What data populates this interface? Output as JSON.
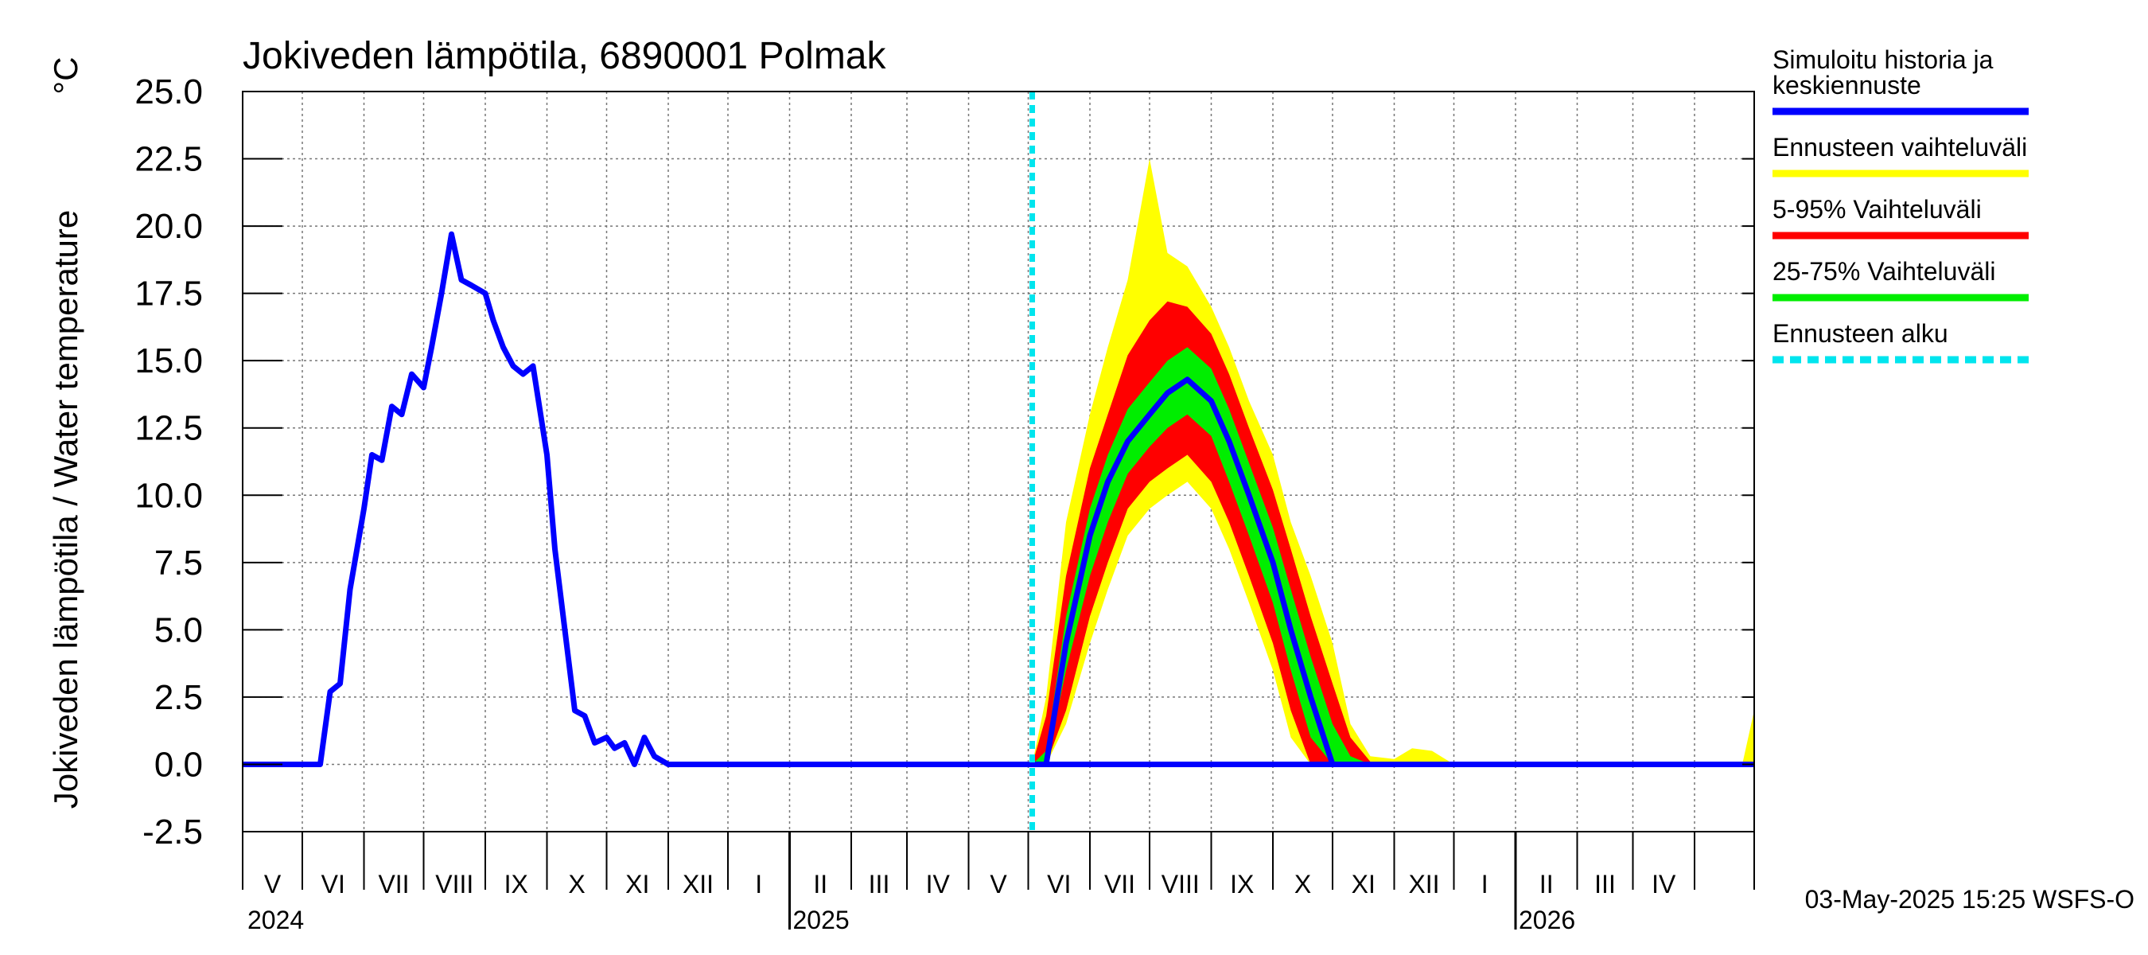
{
  "chart_data": {
    "type": "area",
    "title": "Jokiveden lämpötila, 6890001 Polmak",
    "ylabel": "Jokiveden lämpötila / Water temperature",
    "yunit": "°C",
    "ylim": [
      -2.5,
      25.0
    ],
    "yticks": [
      "25.0",
      "22.5",
      "20.0",
      "17.5",
      "15.0",
      "12.5",
      "10.0",
      "7.5",
      "5.0",
      "2.5",
      "0.0",
      "-2.5"
    ],
    "xlim": [
      "2024-04-01",
      "2026-05-01"
    ],
    "grid": true,
    "legend_position": "right",
    "month_labels": [
      "V",
      "VI",
      "VII",
      "VIII",
      "IX",
      "X",
      "XI",
      "XII",
      "I",
      "II",
      "III",
      "IV",
      "V",
      "VI",
      "VII",
      "VIII",
      "IX",
      "X",
      "XI",
      "XII",
      "I",
      "II",
      "III",
      "IV"
    ],
    "year_labels": [
      "2024",
      "2025",
      "2026"
    ],
    "forecast_start": "2025-05-03",
    "footer": "03-May-2025 15:25 WSFS-O",
    "legend": [
      {
        "label": "Simuloitu historia ja keskiennuste",
        "color": "#0000ff",
        "style": "solid"
      },
      {
        "label": "Ennusteen vaihteluväli",
        "color": "#ffff00",
        "style": "solid"
      },
      {
        "label": "5-95% Vaihteluväli",
        "color": "#ff0000",
        "style": "solid"
      },
      {
        "label": "25-75% Vaihteluväli",
        "color": "#00ee00",
        "style": "solid"
      },
      {
        "label": "Ennusteen alku",
        "color": "#00e5ee",
        "style": "dashed"
      }
    ],
    "history": {
      "name": "Simuloitu historia ja keskiennuste",
      "x": [
        "2024-04-01",
        "2024-05-10",
        "2024-05-15",
        "2024-05-20",
        "2024-05-25",
        "2024-06-01",
        "2024-06-05",
        "2024-06-10",
        "2024-06-15",
        "2024-06-20",
        "2024-06-25",
        "2024-07-01",
        "2024-07-05",
        "2024-07-10",
        "2024-07-15",
        "2024-07-20",
        "2024-07-25",
        "2024-08-01",
        "2024-08-05",
        "2024-08-10",
        "2024-08-15",
        "2024-08-20",
        "2024-08-25",
        "2024-09-01",
        "2024-09-05",
        "2024-09-10",
        "2024-09-15",
        "2024-09-20",
        "2024-09-25",
        "2024-10-01",
        "2024-10-05",
        "2024-10-10",
        "2024-10-15",
        "2024-10-20",
        "2024-10-25",
        "2024-11-01",
        "2024-11-05",
        "2024-11-10",
        "2024-11-15",
        "2024-11-20",
        "2024-11-25",
        "2024-12-01",
        "2026-05-01"
      ],
      "values": [
        0.0,
        0.0,
        2.7,
        3.0,
        6.5,
        9.5,
        11.5,
        11.3,
        13.3,
        13.0,
        14.5,
        14.0,
        15.5,
        17.5,
        19.7,
        18.0,
        17.8,
        17.5,
        16.5,
        15.5,
        14.8,
        14.5,
        14.8,
        11.5,
        8.0,
        5.0,
        2.0,
        1.8,
        0.8,
        1.0,
        0.6,
        0.8,
        0.0,
        1.0,
        0.3,
        0.0,
        0.0,
        0.0,
        0.0,
        0.0,
        0.0,
        0.0,
        0.0
      ]
    },
    "forecast": {
      "x": [
        "2025-05-03",
        "2025-05-10",
        "2025-05-20",
        "2025-06-01",
        "2025-06-10",
        "2025-06-20",
        "2025-07-01",
        "2025-07-10",
        "2025-07-20",
        "2025-08-01",
        "2025-08-10",
        "2025-08-20",
        "2025-09-01",
        "2025-09-10",
        "2025-09-20",
        "2025-10-01",
        "2025-10-10",
        "2025-10-20",
        "2025-11-01",
        "2025-11-10",
        "2025-11-20",
        "2025-12-01",
        "2026-01-01",
        "2026-04-25",
        "2026-05-01"
      ],
      "median": [
        0.0,
        0.0,
        4.5,
        8.5,
        10.5,
        12.0,
        13.0,
        13.8,
        14.3,
        13.5,
        12.0,
        10.0,
        7.5,
        5.0,
        2.5,
        0.0,
        0.0,
        0.0,
        0.0,
        0.0,
        0.0,
        0.0,
        0.0,
        0.0,
        0.0
      ],
      "p25": [
        0.0,
        0.0,
        3.5,
        7.0,
        9.0,
        10.8,
        11.8,
        12.5,
        13.0,
        12.2,
        10.5,
        8.5,
        6.0,
        3.5,
        1.0,
        0.0,
        0.0,
        0.0,
        0.0,
        0.0,
        0.0,
        0.0,
        0.0,
        0.0,
        0.0
      ],
      "p75": [
        0.0,
        0.5,
        5.5,
        9.5,
        11.5,
        13.2,
        14.2,
        15.0,
        15.5,
        14.7,
        13.2,
        11.2,
        8.8,
        6.5,
        4.0,
        1.5,
        0.3,
        0.0,
        0.0,
        0.0,
        0.0,
        0.0,
        0.0,
        0.0,
        0.0
      ],
      "p05": [
        0.0,
        0.0,
        2.0,
        5.5,
        7.5,
        9.5,
        10.5,
        11.0,
        11.5,
        10.5,
        9.0,
        7.0,
        4.5,
        2.0,
        0.0,
        0.0,
        0.0,
        0.0,
        0.0,
        0.0,
        0.0,
        0.0,
        0.0,
        0.0,
        0.0
      ],
      "p95": [
        0.0,
        1.8,
        7.0,
        11.0,
        13.0,
        15.2,
        16.5,
        17.2,
        17.0,
        16.0,
        14.5,
        12.5,
        10.2,
        8.0,
        5.5,
        3.0,
        1.0,
        0.1,
        0.0,
        0.0,
        0.0,
        0.0,
        0.0,
        0.0,
        0.0
      ],
      "min": [
        0.0,
        0.0,
        1.5,
        4.5,
        6.5,
        8.5,
        9.5,
        10.0,
        10.5,
        9.5,
        8.0,
        6.0,
        3.5,
        1.0,
        0.0,
        0.0,
        0.0,
        0.0,
        0.0,
        0.0,
        0.0,
        0.0,
        0.0,
        0.0,
        0.0
      ],
      "max": [
        0.0,
        2.5,
        9.0,
        13.0,
        15.5,
        18.0,
        22.5,
        19.0,
        18.5,
        17.0,
        15.5,
        13.5,
        11.5,
        9.0,
        7.0,
        4.5,
        1.5,
        0.3,
        0.2,
        0.6,
        0.5,
        0.0,
        0.0,
        0.0,
        2.0
      ]
    }
  }
}
